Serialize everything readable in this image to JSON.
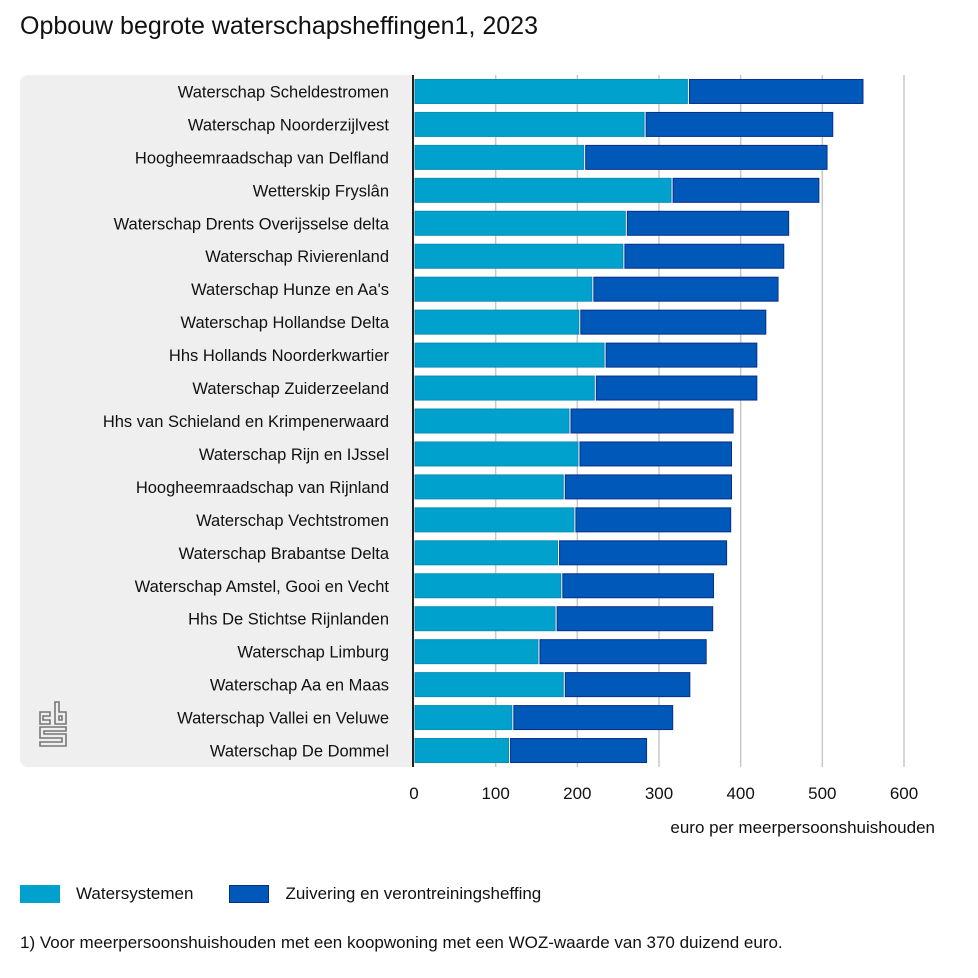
{
  "title": "Opbouw begrote waterschapsheffingen1, 2023",
  "legend": [
    {
      "label": "Watersystemen",
      "color": "#00a1cd"
    },
    {
      "label": "Zuivering en verontreiningsheffing",
      "color": "#0058b8"
    }
  ],
  "footnote": "1) Voor meerpersoonshuishouden met een koopwoning met een WOZ-waarde van 370 duizend euro.",
  "logo": "cbs-logo",
  "chart_data": {
    "type": "bar",
    "orientation": "horizontal",
    "stacked": true,
    "title": "Opbouw begrote waterschapsheffingen1, 2023",
    "xlabel": "euro per meerpersoonshuishouden",
    "ylabel": "",
    "xlim": [
      0,
      600
    ],
    "xticks": [
      0,
      100,
      200,
      300,
      400,
      500,
      600
    ],
    "grid": true,
    "legend_position": "bottom-left",
    "categories": [
      "Waterschap Scheldestromen",
      "Waterschap Noorderzijlvest",
      "Hoogheemraadschap van Delfland",
      "Wetterskip Fryslân",
      "Waterschap Drents Overijsselse delta",
      "Waterschap Rivierenland",
      "Waterschap Hunze en Aa's",
      "Waterschap Hollandse Delta",
      "Hhs Hollands Noorderkwartier",
      "Waterschap Zuiderzeeland",
      "Hhs van Schieland en Krimpenerwaard",
      "Waterschap Rijn en IJssel",
      "Hoogheemraadschap van Rijnland",
      "Waterschap Vechtstromen",
      "Waterschap Brabantse Delta",
      "Waterschap Amstel, Gooi en Vecht",
      "Hhs De Stichtse Rijnlanden",
      "Waterschap Limburg",
      "Waterschap Aa en Maas",
      "Waterschap Vallei en Veluwe",
      "Waterschap De Dommel"
    ],
    "series": [
      {
        "name": "Watersystemen",
        "color": "#00a1cd",
        "values": [
          336,
          283,
          209,
          316,
          260,
          257,
          219,
          203,
          234,
          222,
          191,
          202,
          184,
          197,
          177,
          181,
          174,
          153,
          184,
          121,
          117
        ]
      },
      {
        "name": "Zuivering en verontreiningsheffing",
        "color": "#0058b8",
        "values": [
          215,
          231,
          298,
          181,
          200,
          197,
          228,
          229,
          187,
          199,
          201,
          188,
          206,
          192,
          207,
          187,
          193,
          206,
          155,
          197,
          169
        ]
      }
    ]
  }
}
